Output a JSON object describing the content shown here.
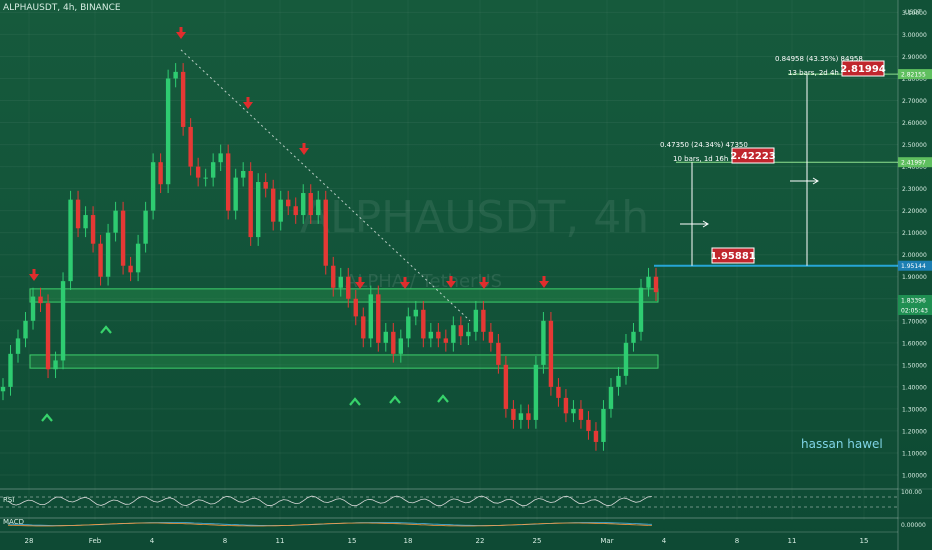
{
  "header": {
    "symbol_line": "ALPHAUSDT, 4h, BINANCE"
  },
  "watermark": {
    "line1": "ALPHAUSDT, 4h",
    "line2": "ALPHA / TetherUS"
  },
  "signature": "hassan hawel",
  "colors": {
    "background": "#145a3c",
    "up": "#2ecc71",
    "down": "#e53935",
    "zone": "#2b9a4e",
    "level_line": "#26a6d6",
    "target_tag": "#c0262d"
  },
  "price_axis": {
    "unit": "USDT",
    "ticks": [
      "3.10000",
      "3.00000",
      "2.90000",
      "2.80000",
      "2.70000",
      "2.60000",
      "2.50000",
      "2.40000",
      "2.30000",
      "2.20000",
      "2.10000",
      "2.00000",
      "1.90000",
      "1.80000",
      "1.70000",
      "1.60000",
      "1.50000",
      "1.40000",
      "1.30000",
      "1.20000",
      "1.10000",
      "1.00000"
    ],
    "current_price": "1.83396",
    "countdown": "02:05:43",
    "level_label": "1.95144",
    "target1_label": "2.41997",
    "target2_label": "2.82155"
  },
  "time_axis": {
    "ticks": [
      "28",
      "Feb",
      "4",
      "8",
      "11",
      "15",
      "18",
      "22",
      "25",
      "Mar",
      "4",
      "8",
      "11",
      "15"
    ]
  },
  "measurements": [
    {
      "text": "0.47350 (24.34%) 47350",
      "bars": "10 bars, 1d 16h",
      "target": "2.42223"
    },
    {
      "text": "0.84958 (43.35%) 84958",
      "bars": "13 bars, 2d 4h",
      "target": "2.81994"
    }
  ],
  "breakout_tag": "1.95881",
  "indicators": {
    "rsi": {
      "label": "RSI",
      "axis_label": "100.00"
    },
    "macd": {
      "label": "MACD",
      "axis_label": "0.00000"
    }
  },
  "chart_data": {
    "type": "candlestick",
    "title": "ALPHAUSDT, 4h, BINANCE",
    "ylim": [
      0.95,
      3.12
    ],
    "horizontal_level": 1.95,
    "zones": [
      [
        1.785,
        1.845
      ],
      [
        1.485,
        1.545
      ]
    ],
    "targets": [
      2.42,
      2.82
    ],
    "trendline": {
      "from": [
        "Feb 5",
        2.93
      ],
      "to": [
        "Feb 20",
        1.7
      ]
    },
    "closes": [
      1.4,
      1.55,
      1.62,
      1.7,
      1.81,
      1.78,
      1.48,
      1.52,
      1.88,
      2.25,
      2.12,
      2.18,
      2.05,
      1.9,
      2.1,
      2.2,
      1.95,
      1.92,
      2.05,
      2.2,
      2.42,
      2.32,
      2.8,
      2.83,
      2.58,
      2.4,
      2.35,
      2.35,
      2.42,
      2.46,
      2.2,
      2.35,
      2.38,
      2.08,
      2.33,
      2.3,
      2.15,
      2.25,
      2.22,
      2.18,
      2.28,
      2.18,
      2.25,
      1.95,
      1.85,
      1.9,
      1.8,
      1.72,
      1.62,
      1.82,
      1.6,
      1.65,
      1.55,
      1.62,
      1.72,
      1.75,
      1.62,
      1.65,
      1.62,
      1.6,
      1.68,
      1.63,
      1.65,
      1.75,
      1.65,
      1.6,
      1.5,
      1.3,
      1.25,
      1.28,
      1.25,
      1.5,
      1.7,
      1.4,
      1.35,
      1.28,
      1.3,
      1.25,
      1.2,
      1.15,
      1.3,
      1.4,
      1.45,
      1.6,
      1.65,
      1.85,
      1.9,
      1.83
    ]
  }
}
